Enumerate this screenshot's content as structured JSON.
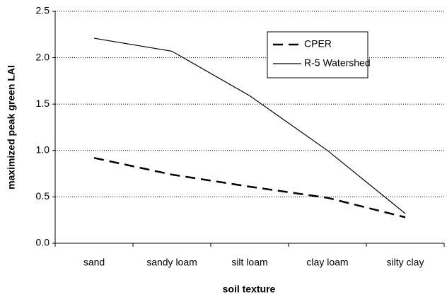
{
  "chart_data": {
    "type": "line",
    "xlabel": "soil texture",
    "ylabel": "maximized peak green LAI",
    "categories": [
      "sand",
      "sandy loam",
      "silt loam",
      "clay loam",
      "silty clay"
    ],
    "series": [
      {
        "name": "CPER",
        "color": "#000000",
        "line_style": "dashed",
        "values": [
          0.92,
          0.74,
          0.61,
          0.49,
          0.28
        ]
      },
      {
        "name": "R-5 Watershed",
        "color": "#000000",
        "line_style": "solid",
        "values": [
          2.21,
          2.07,
          1.59,
          1.0,
          0.32
        ]
      }
    ],
    "ylim": [
      0,
      2.5
    ],
    "yticks": [
      {
        "value": 0,
        "label": "0.0"
      },
      0.5,
      {
        "value": 1,
        "label": "1.0"
      },
      1.5,
      {
        "value": 2,
        "label": "2.0"
      },
      2.5
    ],
    "grid": true,
    "legend": "upper right"
  }
}
